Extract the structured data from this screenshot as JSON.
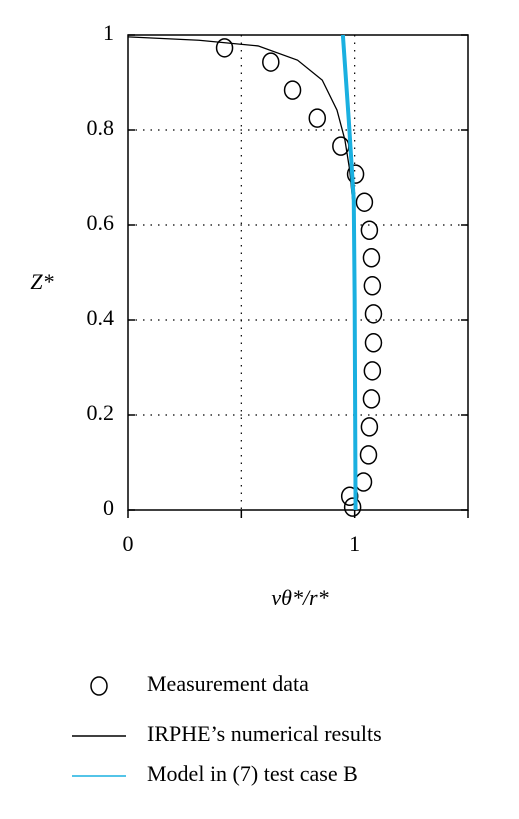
{
  "chart_data": {
    "type": "line",
    "xlabel": "vθ*/r*",
    "ylabel": "Z*",
    "xlim": [
      0,
      1.5
    ],
    "ylim": [
      0,
      1
    ],
    "xticks": [
      0,
      1
    ],
    "xminor_ticks": [
      0.5,
      1.5
    ],
    "yticks": [
      0,
      0.2,
      0.4,
      0.6,
      0.8,
      1
    ],
    "grid": true,
    "series": [
      {
        "name": "Measurement data",
        "mode": "markers",
        "color": "#000000",
        "x": [
          0.426,
          0.63,
          0.726,
          0.835,
          0.939,
          1.004,
          1.043,
          1.065,
          1.074,
          1.078,
          1.083,
          1.083,
          1.078,
          1.074,
          1.065,
          1.061,
          1.039,
          0.978,
          0.991
        ],
        "values": [
          0.973,
          0.943,
          0.884,
          0.825,
          0.766,
          0.707,
          0.648,
          0.589,
          0.531,
          0.472,
          0.413,
          0.352,
          0.293,
          0.234,
          0.175,
          0.116,
          0.059,
          0.029,
          0.006
        ]
      },
      {
        "name": "IRPHE’s numerical results",
        "mode": "line",
        "color": "#000000",
        "width": 1.3,
        "x": [
          0,
          0.313,
          0.574,
          0.748,
          0.857,
          0.922,
          0.957,
          0.978,
          0.991,
          0.996,
          1,
          1
        ],
        "values": [
          0.996,
          0.989,
          0.977,
          0.947,
          0.905,
          0.842,
          0.779,
          0.716,
          0.653,
          0.547,
          0.337,
          0
        ]
      },
      {
        "name": "Model in (7) test case B",
        "mode": "line",
        "color": "#1ab0e0",
        "width": 4,
        "x": [
          0.948,
          0.974,
          0.996,
          1.0,
          1.004
        ],
        "values": [
          1,
          0.821,
          0.653,
          0.442,
          0
        ]
      }
    ]
  }
}
